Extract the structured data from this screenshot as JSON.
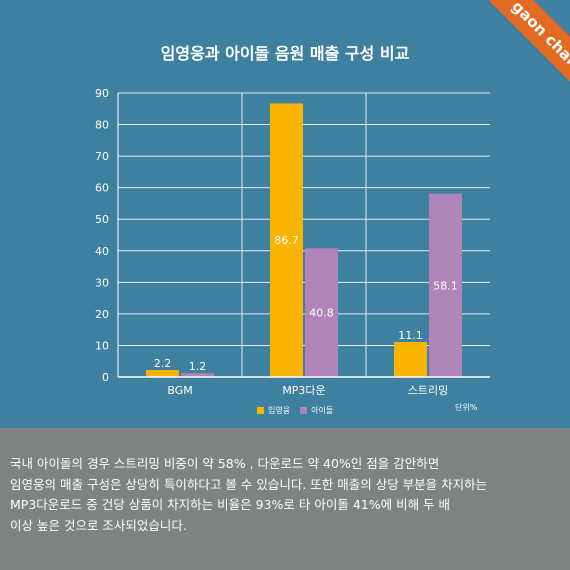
{
  "brand": {
    "label": "gaon chart",
    "color": "#e36a22"
  },
  "colors": {
    "background": "#3e80a0",
    "footer": "#7d8283",
    "series1": "#f8b400",
    "series2": "#b084b8"
  },
  "chart_data": {
    "type": "bar",
    "title": "임영웅과 아이돌 음원 매출 구성 비교",
    "categories": [
      "BGM",
      "MP3다운",
      "스트리밍"
    ],
    "series": [
      {
        "name": "임영웅",
        "values": [
          2.2,
          86.7,
          11.1
        ],
        "labels": [
          "2.2",
          "86.7",
          "11.1"
        ]
      },
      {
        "name": "아이돌",
        "values": [
          1.2,
          40.8,
          58.1
        ],
        "labels": [
          "1.2",
          "40.8",
          "58.1"
        ]
      }
    ],
    "ylim": [
      0,
      90
    ],
    "yticks": [
      0,
      10,
      20,
      30,
      40,
      50,
      60,
      70,
      80,
      90
    ],
    "grid": true,
    "legend": "bottom-center",
    "unit_note": "단위%"
  },
  "description": {
    "lines": [
      "국내 아이돌의 경우 스트리밍 비중이 약 58% , 다운로드 약 40%인 점을 감안하면",
      "임영웅의 매출 구성은 상당히 특이하다고 볼 수 있습니다. 또한 매출의 상당 부분을 차지하는",
      "MP3다운로드 중 건당 상품이 차지하는 비율은 93%로 타 아이돌 41%에 비해 두 배",
      "이상 높은 것으로 조사되었습니다."
    ]
  }
}
